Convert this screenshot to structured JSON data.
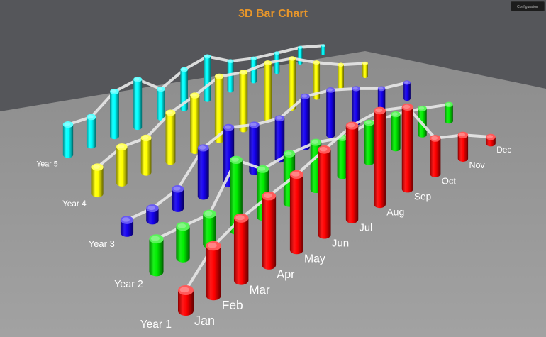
{
  "chart_data": {
    "type": "bar",
    "title": "3D Bar Chart",
    "categories": [
      "Jan",
      "Feb",
      "Mar",
      "Apr",
      "May",
      "Jun",
      "Jul",
      "Aug",
      "Sep",
      "Oct",
      "Nov",
      "Dec"
    ],
    "series": [
      {
        "name": "Year 1",
        "color": "#ff0000",
        "values": [
          2.0,
          5.0,
          6.5,
          7.5,
          8.5,
          10.0,
          11.5,
          12.0,
          11.0,
          5.0,
          3.5,
          1.0
        ]
      },
      {
        "name": "Year 2",
        "color": "#00ee00",
        "values": [
          3.5,
          3.5,
          3.5,
          8.5,
          6.0,
          6.5,
          6.5,
          5.5,
          6.0,
          5.5,
          4.5,
          3.0
        ]
      },
      {
        "name": "Year 3",
        "color": "#1500ee",
        "values": [
          1.5,
          1.5,
          2.5,
          6.5,
          8.0,
          7.0,
          6.5,
          8.5,
          8.0,
          6.5,
          4.5,
          3.5
        ]
      },
      {
        "name": "Year 4",
        "color": "#ffff00",
        "values": [
          3.5,
          5.0,
          5.0,
          7.5,
          9.0,
          11.0,
          10.5,
          11.0,
          10.5,
          8.0,
          5.5,
          3.5
        ]
      },
      {
        "name": "Year 5",
        "color": "#00ffff",
        "values": [
          4.5,
          4.5,
          7.5,
          8.5,
          5.5,
          8.0,
          9.5,
          7.0,
          6.0,
          5.5,
          5.0,
          3.0
        ]
      }
    ],
    "labels": {
      "category_axis": [
        "Jan",
        "Feb",
        "Mar",
        "Apr",
        "May",
        "Jun",
        "Jul",
        "Aug",
        "Sep",
        "Oct",
        "Nov",
        "Dec"
      ],
      "series_axis": [
        "Year 1",
        "Year 2",
        "Year 3",
        "Year 4",
        "Year 5"
      ]
    },
    "connecting_lines": true,
    "ylim": [
      0,
      13
    ],
    "grid": false,
    "legend": "none"
  },
  "ui": {
    "config_button_label": "Configuration"
  },
  "colors": {
    "title": "#e8962a",
    "floor": "#9a9a9a",
    "backdrop": "#55565a",
    "line": "#e6e6e6",
    "label": "#ffffff"
  }
}
